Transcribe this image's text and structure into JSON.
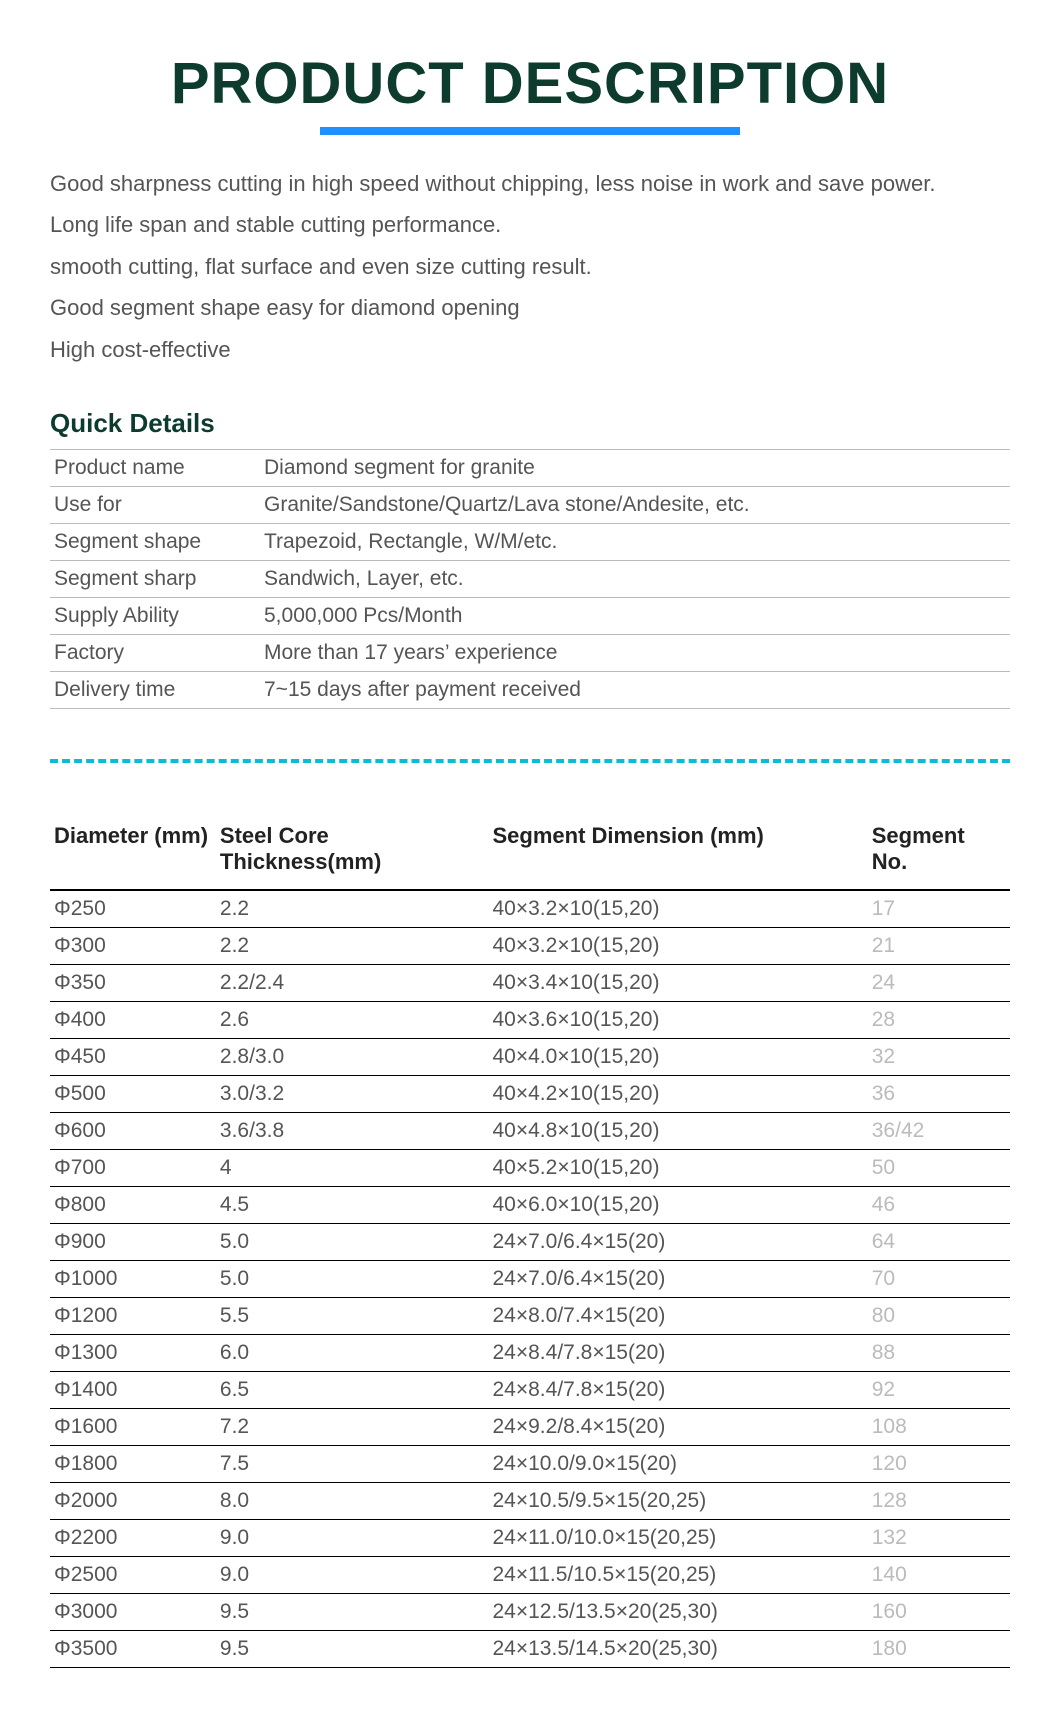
{
  "title": "PRODUCT DESCRIPTION",
  "descriptions": [
    "Good sharpness cutting in high speed without chipping, less noise in work and save power.",
    "Long life span and stable cutting performance.",
    "smooth cutting, flat surface and even size cutting result.",
    "Good segment shape easy for diamond opening",
    "High cost-effective"
  ],
  "quick_details": {
    "heading": "Quick Details",
    "rows": [
      {
        "label": "Product name",
        "value": "Diamond segment for granite"
      },
      {
        "label": "Use for",
        "value": "Granite/Sandstone/Quartz/Lava stone/Andesite, etc."
      },
      {
        "label": "Segment shape",
        "value": "Trapezoid, Rectangle, W/M/etc."
      },
      {
        "label": "Segment sharp",
        "value": "Sandwich, Layer, etc."
      },
      {
        "label": "Supply Ability",
        "value": "5,000,000 Pcs/Month"
      },
      {
        "label": "Factory",
        "value": "More than 17 years’ experience"
      },
      {
        "label": "Delivery time",
        "value": "7~15 days after payment received"
      }
    ]
  },
  "spec_table": {
    "headers": {
      "diameter": "Diameter (mm)",
      "core": "Steel Core Thickness(mm)",
      "dimension": "Segment Dimension  (mm)",
      "segno": "Segment No."
    },
    "rows": [
      {
        "diameter": "Φ250",
        "core": "2.2",
        "dimension": "40×3.2×10(15,20)",
        "segno": "17"
      },
      {
        "diameter": "Φ300",
        "core": "2.2",
        "dimension": "40×3.2×10(15,20)",
        "segno": "21"
      },
      {
        "diameter": "Φ350",
        "core": "2.2/2.4",
        "dimension": "40×3.4×10(15,20)",
        "segno": "24"
      },
      {
        "diameter": "Φ400",
        "core": "2.6",
        "dimension": "40×3.6×10(15,20)",
        "segno": "28"
      },
      {
        "diameter": "Φ450",
        "core": "2.8/3.0",
        "dimension": "40×4.0×10(15,20)",
        "segno": "32"
      },
      {
        "diameter": "Φ500",
        "core": "3.0/3.2",
        "dimension": "40×4.2×10(15,20)",
        "segno": "36"
      },
      {
        "diameter": "Φ600",
        "core": "3.6/3.8",
        "dimension": "40×4.8×10(15,20)",
        "segno": "36/42"
      },
      {
        "diameter": "Φ700",
        "core": "4",
        "dimension": "40×5.2×10(15,20)",
        "segno": "50"
      },
      {
        "diameter": "Φ800",
        "core": "4.5",
        "dimension": "40×6.0×10(15,20)",
        "segno": "46"
      },
      {
        "diameter": "Φ900",
        "core": "5.0",
        "dimension": "24×7.0/6.4×15(20)",
        "segno": "64"
      },
      {
        "diameter": "Φ1000",
        "core": "5.0",
        "dimension": "24×7.0/6.4×15(20)",
        "segno": "70"
      },
      {
        "diameter": "Φ1200",
        "core": "5.5",
        "dimension": "24×8.0/7.4×15(20)",
        "segno": "80"
      },
      {
        "diameter": "Φ1300",
        "core": "6.0",
        "dimension": "24×8.4/7.8×15(20)",
        "segno": "88"
      },
      {
        "diameter": "Φ1400",
        "core": "6.5",
        "dimension": "24×8.4/7.8×15(20)",
        "segno": "92"
      },
      {
        "diameter": "Φ1600",
        "core": "7.2",
        "dimension": "24×9.2/8.4×15(20)",
        "segno": "108"
      },
      {
        "diameter": "Φ1800",
        "core": "7.5",
        "dimension": "24×10.0/9.0×15(20)",
        "segno": "120"
      },
      {
        "diameter": "Φ2000",
        "core": "8.0",
        "dimension": "24×10.5/9.5×15(20,25)",
        "segno": "128"
      },
      {
        "diameter": "Φ2200",
        "core": "9.0",
        "dimension": "24×11.0/10.0×15(20,25)",
        "segno": "132"
      },
      {
        "diameter": "Φ2500",
        "core": "9.0",
        "dimension": "24×11.5/10.5×15(20,25)",
        "segno": "140"
      },
      {
        "diameter": "Φ3000",
        "core": "9.5",
        "dimension": "24×12.5/13.5×20(25,30)",
        "segno": "160"
      },
      {
        "diameter": "Φ3500",
        "core": "9.5",
        "dimension": "24×13.5/14.5×20(25,30)",
        "segno": "180"
      }
    ]
  },
  "styling": {
    "title_color": "#0d3b2e",
    "underline_color": "#1e90ff",
    "divider_color": "#0bbcd6",
    "text_color": "#555555",
    "segno_color": "#bbbbbb",
    "body_bg": "#ffffff"
  }
}
